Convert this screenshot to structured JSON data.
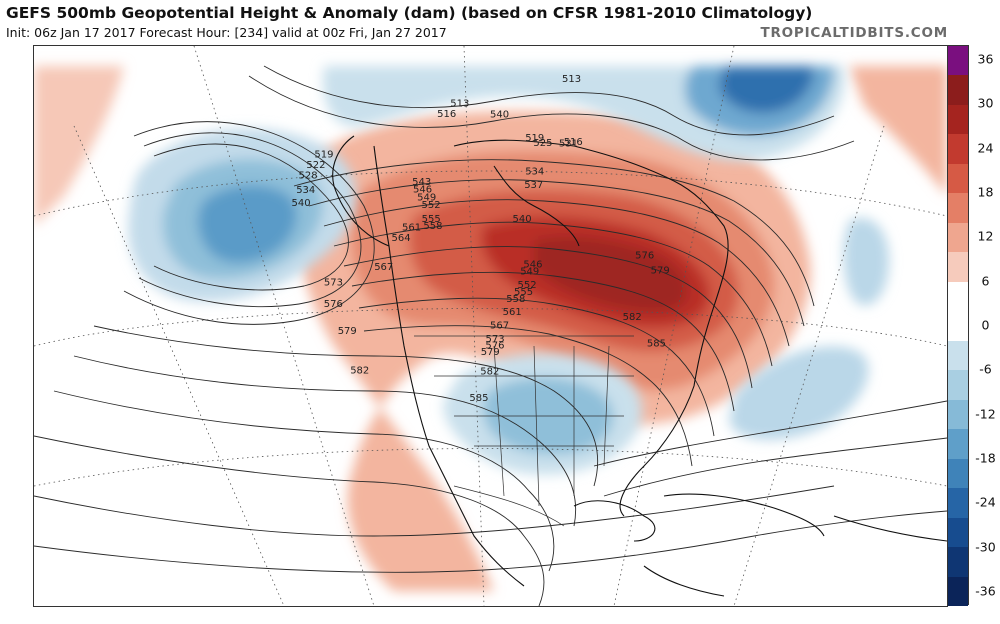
{
  "header": {
    "title": "GEFS 500mb Geopotential Height & Anomaly (dam) (based on CFSR 1981-2010 Climatology)",
    "subtitle": "Init: 06z Jan 17 2017   Forecast Hour: [234]   valid at 00z Fri, Jan 27 2017",
    "brand": "TROPICALTIDBITS.COM"
  },
  "colorbar": {
    "labels": [
      "36",
      "30",
      "24",
      "18",
      "12",
      "6",
      "0",
      "-6",
      "-12",
      "-18",
      "-24",
      "-30",
      "-36"
    ],
    "colors": [
      "#7a0f7f",
      "#8c1d1c",
      "#a5241f",
      "#c23a2f",
      "#d65a45",
      "#e47f66",
      "#efa68f",
      "#f6cbbc",
      "#ffffff",
      "#ffffff",
      "#c9e0ec",
      "#a9cfe2",
      "#86bad7",
      "#5f9fc9",
      "#3f83b9",
      "#2665a6",
      "#174c8f",
      "#0f3673",
      "#0b2459"
    ]
  },
  "contour_labels": [
    {
      "text": "513",
      "lat": 62,
      "lon": -120
    },
    {
      "text": "513",
      "lat": 64,
      "lon": -60
    },
    {
      "text": "516",
      "lat": 60,
      "lon": -125
    },
    {
      "text": "516",
      "lat": 55,
      "lon": -70
    },
    {
      "text": "519",
      "lat": 46,
      "lon": -160
    },
    {
      "text": "522",
      "lat": 44,
      "lon": -160
    },
    {
      "text": "528",
      "lat": 42,
      "lon": -160
    },
    {
      "text": "534",
      "lat": 40,
      "lon": -158
    },
    {
      "text": "540",
      "lat": 38,
      "lon": -157
    },
    {
      "text": "540",
      "lat": 61,
      "lon": -100
    },
    {
      "text": "543",
      "lat": 49,
      "lon": -127
    },
    {
      "text": "546",
      "lat": 48,
      "lon": -126
    },
    {
      "text": "549",
      "lat": 47,
      "lon": -124
    },
    {
      "text": "552",
      "lat": 46,
      "lon": -122
    },
    {
      "text": "555",
      "lat": 44,
      "lon": -121
    },
    {
      "text": "558",
      "lat": 43,
      "lon": -120
    },
    {
      "text": "561",
      "lat": 42,
      "lon": -126
    },
    {
      "text": "564",
      "lat": 40,
      "lon": -128
    },
    {
      "text": "567",
      "lat": 35,
      "lon": -130
    },
    {
      "text": "573",
      "lat": 30,
      "lon": -140
    },
    {
      "text": "576",
      "lat": 27,
      "lon": -138
    },
    {
      "text": "579",
      "lat": 24,
      "lon": -133
    },
    {
      "text": "582",
      "lat": 19,
      "lon": -128
    },
    {
      "text": "519",
      "lat": 57,
      "lon": -85
    },
    {
      "text": "525",
      "lat": 56,
      "lon": -82
    },
    {
      "text": "531",
      "lat": 55,
      "lon": -72
    },
    {
      "text": "534",
      "lat": 52,
      "lon": -87
    },
    {
      "text": "537",
      "lat": 50,
      "lon": -88
    },
    {
      "text": "540",
      "lat": 45,
      "lon": -93
    },
    {
      "text": "546",
      "lat": 38,
      "lon": -91
    },
    {
      "text": "549",
      "lat": 37,
      "lon": -92
    },
    {
      "text": "552",
      "lat": 35,
      "lon": -93
    },
    {
      "text": "555",
      "lat": 34,
      "lon": -94
    },
    {
      "text": "558",
      "lat": 33,
      "lon": -96
    },
    {
      "text": "561",
      "lat": 31,
      "lon": -97
    },
    {
      "text": "567",
      "lat": 29,
      "lon": -100
    },
    {
      "text": "573",
      "lat": 27,
      "lon": -101
    },
    {
      "text": "576",
      "lat": 26,
      "lon": -101
    },
    {
      "text": "579",
      "lat": 25,
      "lon": -102
    },
    {
      "text": "582",
      "lat": 22,
      "lon": -102
    },
    {
      "text": "585",
      "lat": 18,
      "lon": -104
    },
    {
      "text": "576",
      "lat": 35,
      "lon": -62
    },
    {
      "text": "579",
      "lat": 32,
      "lon": -60
    },
    {
      "text": "582",
      "lat": 27,
      "lon": -70
    },
    {
      "text": "585",
      "lat": 22,
      "lon": -67
    }
  ]
}
